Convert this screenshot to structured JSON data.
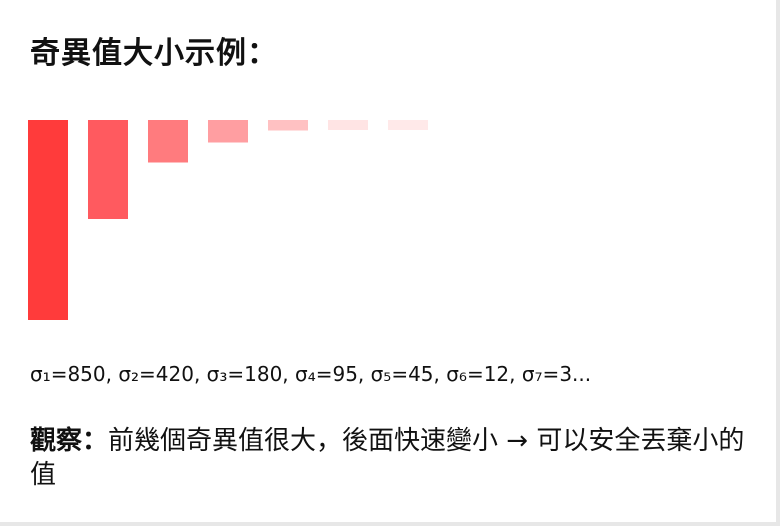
{
  "heading": {
    "title": "奇異值大小示例："
  },
  "chart_data": {
    "type": "bar",
    "categories": [
      "σ₁",
      "σ₂",
      "σ₃",
      "σ₄",
      "σ₅",
      "σ₆",
      "σ₇"
    ],
    "values": [
      850,
      420,
      180,
      95,
      45,
      12,
      3
    ],
    "colors": [
      "#ff3b3b",
      "#ff5a5f",
      "#ff7b7e",
      "#ff9ea1",
      "#ffc1c2",
      "#ffe4e4",
      "#ffe9e9"
    ],
    "title": "",
    "xlabel": "",
    "ylabel": "",
    "grid": false,
    "legend": "none"
  },
  "values_line": "σ₁=850, σ₂=420, σ₃=180, σ₄=95, σ₅=45, σ₆=12, σ₇=3...",
  "observation": {
    "label": "觀察：",
    "text": "前幾個奇異值很大，後面快速變小 → 可以安全丟棄小的值"
  }
}
